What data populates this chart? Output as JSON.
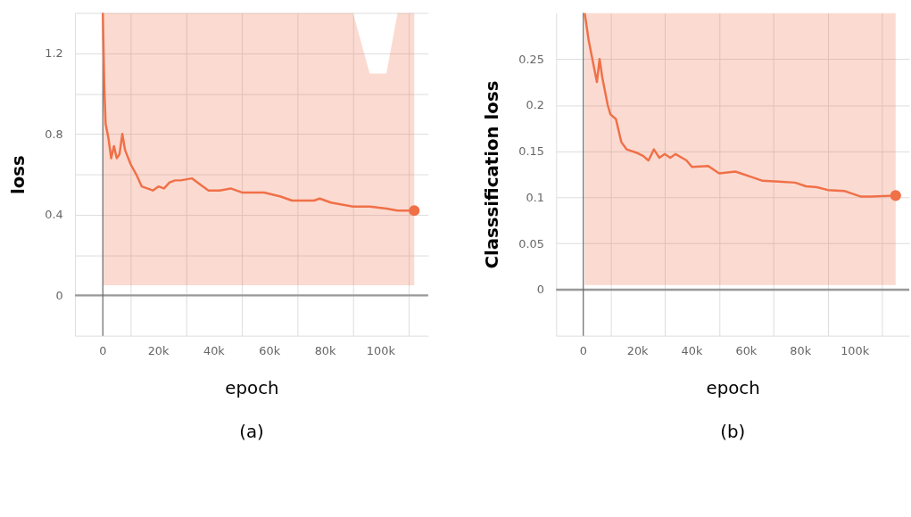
{
  "chart_data": [
    {
      "type": "line",
      "title": "(a)",
      "xlabel": "epoch",
      "ylabel": "loss",
      "grid": true,
      "xlim": [
        -10000,
        117000
      ],
      "ylim": [
        -0.2,
        1.4
      ],
      "xticks": [
        {
          "value": -10000,
          "label": null
        },
        0,
        {
          "value": 10000,
          "label": null
        },
        {
          "value": 20000,
          "label": "20k"
        },
        {
          "value": 30000,
          "label": null
        },
        {
          "value": 40000,
          "label": "40k"
        },
        {
          "value": 50000,
          "label": null
        },
        {
          "value": 60000,
          "label": "60k"
        },
        {
          "value": 70000,
          "label": null
        },
        {
          "value": 80000,
          "label": "80k"
        },
        {
          "value": 90000,
          "label": null
        },
        {
          "value": 100000,
          "label": "100k"
        },
        {
          "value": 110000,
          "label": null
        }
      ],
      "yticks": [
        {
          "value": -0.2,
          "label": null
        },
        0,
        {
          "value": 0.2,
          "label": null
        },
        0.4,
        {
          "value": 0.6,
          "label": null
        },
        0.8,
        {
          "value": 1,
          "label": null
        },
        1.2,
        {
          "value": 1.4,
          "label": null
        }
      ],
      "ref_lines": [
        {
          "axis": "y",
          "value": 0,
          "color": "#999999"
        },
        {
          "axis": "x",
          "value": 0,
          "color": "#666666"
        }
      ],
      "series": [
        {
          "color": "#f07048",
          "x": [
            0,
            500,
            1000,
            2000,
            3000,
            4000,
            5000,
            6000,
            7000,
            8000,
            10000,
            12000,
            14000,
            16000,
            18000,
            20000,
            22000,
            24000,
            26000,
            28000,
            32000,
            36000,
            38000,
            42000,
            46000,
            50000,
            58000,
            64000,
            68000,
            76000,
            78000,
            82000,
            86000,
            90000,
            96000,
            102000,
            106000,
            112000
          ],
          "values": [
            1.4,
            1.05,
            0.85,
            0.78,
            0.68,
            0.74,
            0.68,
            0.7,
            0.8,
            0.72,
            0.65,
            0.6,
            0.54,
            0.53,
            0.52,
            0.54,
            0.53,
            0.56,
            0.57,
            0.57,
            0.58,
            0.54,
            0.52,
            0.52,
            0.53,
            0.51,
            0.51,
            0.49,
            0.47,
            0.47,
            0.48,
            0.46,
            0.45,
            0.44,
            0.44,
            0.43,
            0.42,
            0.42
          ],
          "lower": [
            0.05,
            0.05,
            0.05,
            0.05,
            0.05,
            0.05,
            0.05,
            0.05,
            0.05,
            0.05,
            0.05,
            0.05,
            0.05,
            0.05,
            0.05,
            0.05,
            0.05,
            0.05,
            0.05,
            0.05,
            0.05,
            0.05,
            0.05,
            0.05,
            0.05,
            0.05,
            0.05,
            0.05,
            0.05,
            0.05,
            0.05,
            0.05,
            0.05,
            0.05,
            0.05,
            0.05,
            0.05,
            0.05
          ],
          "upper": [
            1.4,
            1.4,
            1.4,
            1.4,
            1.4,
            1.4,
            1.4,
            1.4,
            1.4,
            1.4,
            1.4,
            1.4,
            1.4,
            1.4,
            1.4,
            1.4,
            1.4,
            1.4,
            1.4,
            1.4,
            1.4,
            1.4,
            1.4,
            1.4,
            1.4,
            1.4,
            1.4,
            1.4,
            1.4,
            1.4,
            1.4,
            1.4,
            1.4,
            1.4,
            1.1,
            1.1,
            1.4,
            1.4
          ]
        },
        {
          "type": "scatter",
          "color": "#f07048",
          "x": [
            112000
          ],
          "values": [
            0.42
          ]
        }
      ]
    },
    {
      "type": "line",
      "title": "(b)",
      "xlabel": "epoch",
      "ylabel": "Classsification loss",
      "grid": true,
      "xlim": [
        -10000,
        120000
      ],
      "ylim": [
        -0.05,
        0.3
      ],
      "xticks": [
        {
          "value": -10000,
          "label": null
        },
        0,
        {
          "value": 10000,
          "label": null
        },
        {
          "value": 20000,
          "label": "20k"
        },
        {
          "value": 30000,
          "label": null
        },
        {
          "value": 40000,
          "label": "40k"
        },
        {
          "value": 50000,
          "label": null
        },
        {
          "value": 60000,
          "label": "60k"
        },
        {
          "value": 70000,
          "label": null
        },
        {
          "value": 80000,
          "label": "80k"
        },
        {
          "value": 90000,
          "label": null
        },
        {
          "value": 100000,
          "label": "100k"
        },
        {
          "value": 110000,
          "label": null
        }
      ],
      "yticks": [
        {
          "value": -0.05,
          "label": null
        },
        0,
        0.05,
        0.1,
        0.15,
        0.2,
        0.25
      ],
      "ref_lines": [
        {
          "axis": "y",
          "value": 0,
          "color": "#999999"
        },
        {
          "axis": "x",
          "value": 0,
          "color": "#666666"
        }
      ],
      "series": [
        {
          "color": "#f07048",
          "x": [
            500,
            2000,
            4000,
            5000,
            6000,
            7000,
            9000,
            10000,
            12000,
            14000,
            16000,
            20000,
            22000,
            24000,
            26000,
            28000,
            30000,
            32000,
            34000,
            38000,
            40000,
            46000,
            50000,
            56000,
            62000,
            66000,
            72000,
            78000,
            82000,
            86000,
            90000,
            96000,
            102000,
            106000,
            115000
          ],
          "values": [
            0.3,
            0.27,
            0.24,
            0.225,
            0.25,
            0.23,
            0.2,
            0.19,
            0.185,
            0.16,
            0.152,
            0.148,
            0.145,
            0.14,
            0.152,
            0.143,
            0.147,
            0.143,
            0.147,
            0.14,
            0.133,
            0.134,
            0.126,
            0.128,
            0.122,
            0.118,
            0.117,
            0.116,
            0.112,
            0.111,
            0.108,
            0.107,
            0.101,
            0.101,
            0.102
          ],
          "lower": [
            0.005,
            0.005,
            0.005,
            0.005,
            0.005,
            0.005,
            0.005,
            0.005,
            0.005,
            0.005,
            0.005,
            0.005,
            0.005,
            0.005,
            0.005,
            0.005,
            0.005,
            0.005,
            0.005,
            0.005,
            0.005,
            0.005,
            0.005,
            0.005,
            0.005,
            0.005,
            0.005,
            0.005,
            0.005,
            0.005,
            0.005,
            0.005,
            0.005,
            0.005,
            0.005
          ],
          "upper": [
            0.3,
            0.3,
            0.3,
            0.3,
            0.3,
            0.3,
            0.3,
            0.3,
            0.3,
            0.3,
            0.3,
            0.3,
            0.3,
            0.3,
            0.3,
            0.3,
            0.3,
            0.3,
            0.3,
            0.3,
            0.3,
            0.3,
            0.3,
            0.3,
            0.3,
            0.3,
            0.3,
            0.3,
            0.3,
            0.3,
            0.3,
            0.3,
            0.3,
            0.3,
            0.3
          ]
        },
        {
          "type": "scatter",
          "color": "#f07048",
          "x": [
            115000
          ],
          "values": [
            0.102
          ]
        }
      ]
    }
  ]
}
